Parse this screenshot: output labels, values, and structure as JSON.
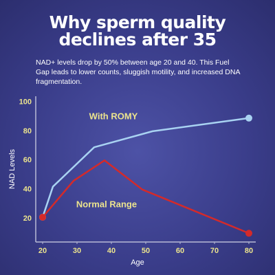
{
  "chart_data": {
    "type": "line",
    "title": "Why sperm quality declines after 35",
    "subtitle": "NAD+ levels drop by 50% between age 20 and 40. This Fuel Gap leads to lower counts, sluggish motility, and increased DNA fragmentation.",
    "x_label": "Age",
    "y_label": "NAD Levels",
    "xlim": [
      18,
      82
    ],
    "xticks": [
      20,
      30,
      40,
      50,
      60,
      70,
      80
    ],
    "ylim": [
      4,
      104
    ],
    "yticks": [
      20,
      40,
      60,
      80,
      100
    ],
    "grid": false,
    "tick_color": "#ece48e",
    "label_color": "#ece48e",
    "series": [
      {
        "name": "With ROMY",
        "color": "#a9d3f2",
        "x": [
          20,
          23,
          35,
          52,
          80
        ],
        "values": [
          21,
          42,
          69,
          80,
          89
        ]
      },
      {
        "name": "Normal Range",
        "color": "#d42a2a",
        "x": [
          20,
          29,
          38,
          49,
          80
        ],
        "values": [
          21,
          46,
          60,
          40,
          10
        ]
      }
    ]
  }
}
